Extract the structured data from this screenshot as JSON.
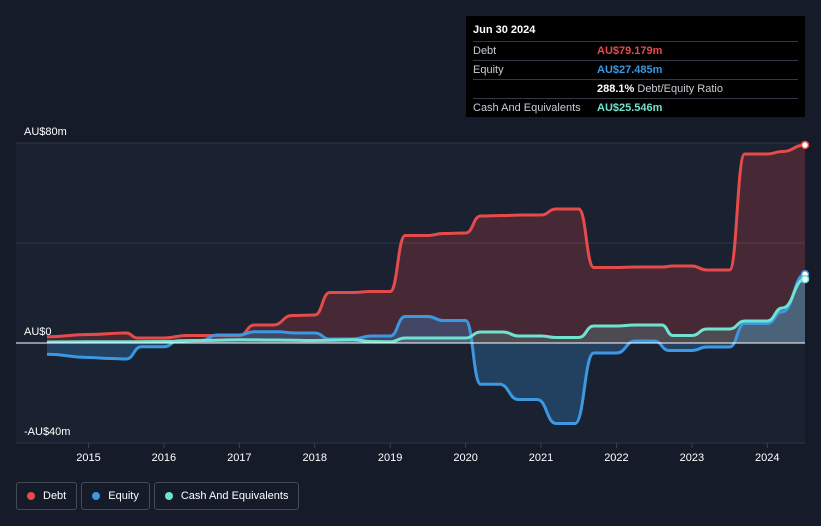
{
  "tooltip": {
    "date": "Jun 30 2024",
    "rows": [
      {
        "label": "Debt",
        "value": "AU$79.179m",
        "color": "#e64b4b"
      },
      {
        "label": "Equity",
        "value": "AU$27.485m",
        "color": "#3b98e1"
      },
      {
        "label": "",
        "value": "288.1%",
        "sub": "Debt/Equity Ratio",
        "color": "#ffffff"
      },
      {
        "label": "Cash And Equivalents",
        "value": "AU$25.546m",
        "color": "#6fe3d0"
      }
    ]
  },
  "legend": [
    {
      "label": "Debt",
      "color": "#e64b4b"
    },
    {
      "label": "Equity",
      "color": "#3b98e1"
    },
    {
      "label": "Cash And Equivalents",
      "color": "#6fe3d0"
    }
  ],
  "chart_data": {
    "type": "area",
    "title": "",
    "xlabel": "",
    "ylabel": "",
    "x_ticks": [
      "2015",
      "2016",
      "2017",
      "2018",
      "2019",
      "2020",
      "2021",
      "2022",
      "2023",
      "2024"
    ],
    "y_ticks": [
      {
        "value": 80,
        "label": "AU$80m"
      },
      {
        "value": 0,
        "label": "AU$0"
      },
      {
        "value": -40,
        "label": "-AU$40m"
      }
    ],
    "xlim": [
      2014.45,
      2024.5
    ],
    "ylim": [
      -40,
      80
    ],
    "grid": true,
    "legend_position": "bottom-left",
    "series": [
      {
        "name": "Debt",
        "color": "#e64b4b",
        "points": [
          [
            2014.45,
            2.5
          ],
          [
            2015.0,
            3.4
          ],
          [
            2015.5,
            4.0
          ],
          [
            2015.65,
            2.0
          ],
          [
            2016.0,
            2.0
          ],
          [
            2016.3,
            3.0
          ],
          [
            2016.65,
            3.0
          ],
          [
            2017.0,
            3.0
          ],
          [
            2017.2,
            7.2
          ],
          [
            2017.45,
            7.2
          ],
          [
            2017.7,
            11.0
          ],
          [
            2018.0,
            11.2
          ],
          [
            2018.2,
            20.2
          ],
          [
            2018.5,
            20.2
          ],
          [
            2018.75,
            20.6
          ],
          [
            2019.0,
            20.6
          ],
          [
            2019.2,
            43.0
          ],
          [
            2019.5,
            43.0
          ],
          [
            2019.7,
            43.8
          ],
          [
            2020.0,
            44.0
          ],
          [
            2020.2,
            50.8
          ],
          [
            2020.5,
            51.0
          ],
          [
            2020.75,
            51.2
          ],
          [
            2021.0,
            51.2
          ],
          [
            2021.2,
            53.6
          ],
          [
            2021.5,
            53.6
          ],
          [
            2021.7,
            30.2
          ],
          [
            2022.0,
            30.2
          ],
          [
            2022.25,
            30.4
          ],
          [
            2022.6,
            30.4
          ],
          [
            2022.75,
            30.8
          ],
          [
            2023.0,
            30.8
          ],
          [
            2023.2,
            29.2
          ],
          [
            2023.5,
            29.2
          ],
          [
            2023.7,
            75.6
          ],
          [
            2024.0,
            75.6
          ],
          [
            2024.2,
            76.6
          ],
          [
            2024.5,
            79.179
          ]
        ]
      },
      {
        "name": "Equity",
        "color": "#3b98e1",
        "points": [
          [
            2014.45,
            -4.5
          ],
          [
            2015.0,
            -5.8
          ],
          [
            2015.3,
            -6.2
          ],
          [
            2015.5,
            -6.4
          ],
          [
            2015.7,
            -1.5
          ],
          [
            2016.0,
            -1.5
          ],
          [
            2016.2,
            1.0
          ],
          [
            2016.5,
            1.0
          ],
          [
            2016.7,
            3.2
          ],
          [
            2017.0,
            3.2
          ],
          [
            2017.2,
            4.5
          ],
          [
            2017.5,
            4.5
          ],
          [
            2017.75,
            4.0
          ],
          [
            2018.0,
            4.0
          ],
          [
            2018.2,
            1.6
          ],
          [
            2018.5,
            1.6
          ],
          [
            2018.75,
            2.8
          ],
          [
            2019.0,
            2.8
          ],
          [
            2019.2,
            10.6
          ],
          [
            2019.5,
            10.6
          ],
          [
            2019.7,
            9.0
          ],
          [
            2020.0,
            9.0
          ],
          [
            2020.2,
            -16.5
          ],
          [
            2020.45,
            -16.5
          ],
          [
            2020.7,
            -22.6
          ],
          [
            2020.95,
            -22.6
          ],
          [
            2021.2,
            -32.2
          ],
          [
            2021.45,
            -32.2
          ],
          [
            2021.7,
            -4.0
          ],
          [
            2022.0,
            -4.0
          ],
          [
            2022.25,
            0.8
          ],
          [
            2022.5,
            0.8
          ],
          [
            2022.7,
            -3.0
          ],
          [
            2023.0,
            -3.0
          ],
          [
            2023.2,
            -1.6
          ],
          [
            2023.5,
            -1.6
          ],
          [
            2023.7,
            7.8
          ],
          [
            2024.0,
            7.8
          ],
          [
            2024.2,
            12.5
          ],
          [
            2024.5,
            27.485
          ]
        ]
      },
      {
        "name": "Cash And Equivalents",
        "color": "#6fe3d0",
        "points": [
          [
            2014.45,
            0.4
          ],
          [
            2015.0,
            0.5
          ],
          [
            2015.5,
            0.5
          ],
          [
            2016.0,
            0.6
          ],
          [
            2016.5,
            1.0
          ],
          [
            2017.0,
            1.3
          ],
          [
            2017.5,
            1.2
          ],
          [
            2018.0,
            1.0
          ],
          [
            2018.5,
            1.3
          ],
          [
            2018.75,
            0.6
          ],
          [
            2019.0,
            0.5
          ],
          [
            2019.2,
            2.0
          ],
          [
            2019.5,
            2.0
          ],
          [
            2020.0,
            2.0
          ],
          [
            2020.2,
            4.4
          ],
          [
            2020.5,
            4.4
          ],
          [
            2020.7,
            2.8
          ],
          [
            2021.0,
            2.8
          ],
          [
            2021.2,
            2.2
          ],
          [
            2021.5,
            2.2
          ],
          [
            2021.7,
            6.8
          ],
          [
            2022.0,
            6.8
          ],
          [
            2022.25,
            7.2
          ],
          [
            2022.6,
            7.2
          ],
          [
            2022.75,
            3.0
          ],
          [
            2023.0,
            3.0
          ],
          [
            2023.2,
            5.6
          ],
          [
            2023.5,
            5.6
          ],
          [
            2023.7,
            8.8
          ],
          [
            2024.0,
            8.8
          ],
          [
            2024.2,
            14.0
          ],
          [
            2024.5,
            25.546
          ]
        ]
      }
    ]
  }
}
